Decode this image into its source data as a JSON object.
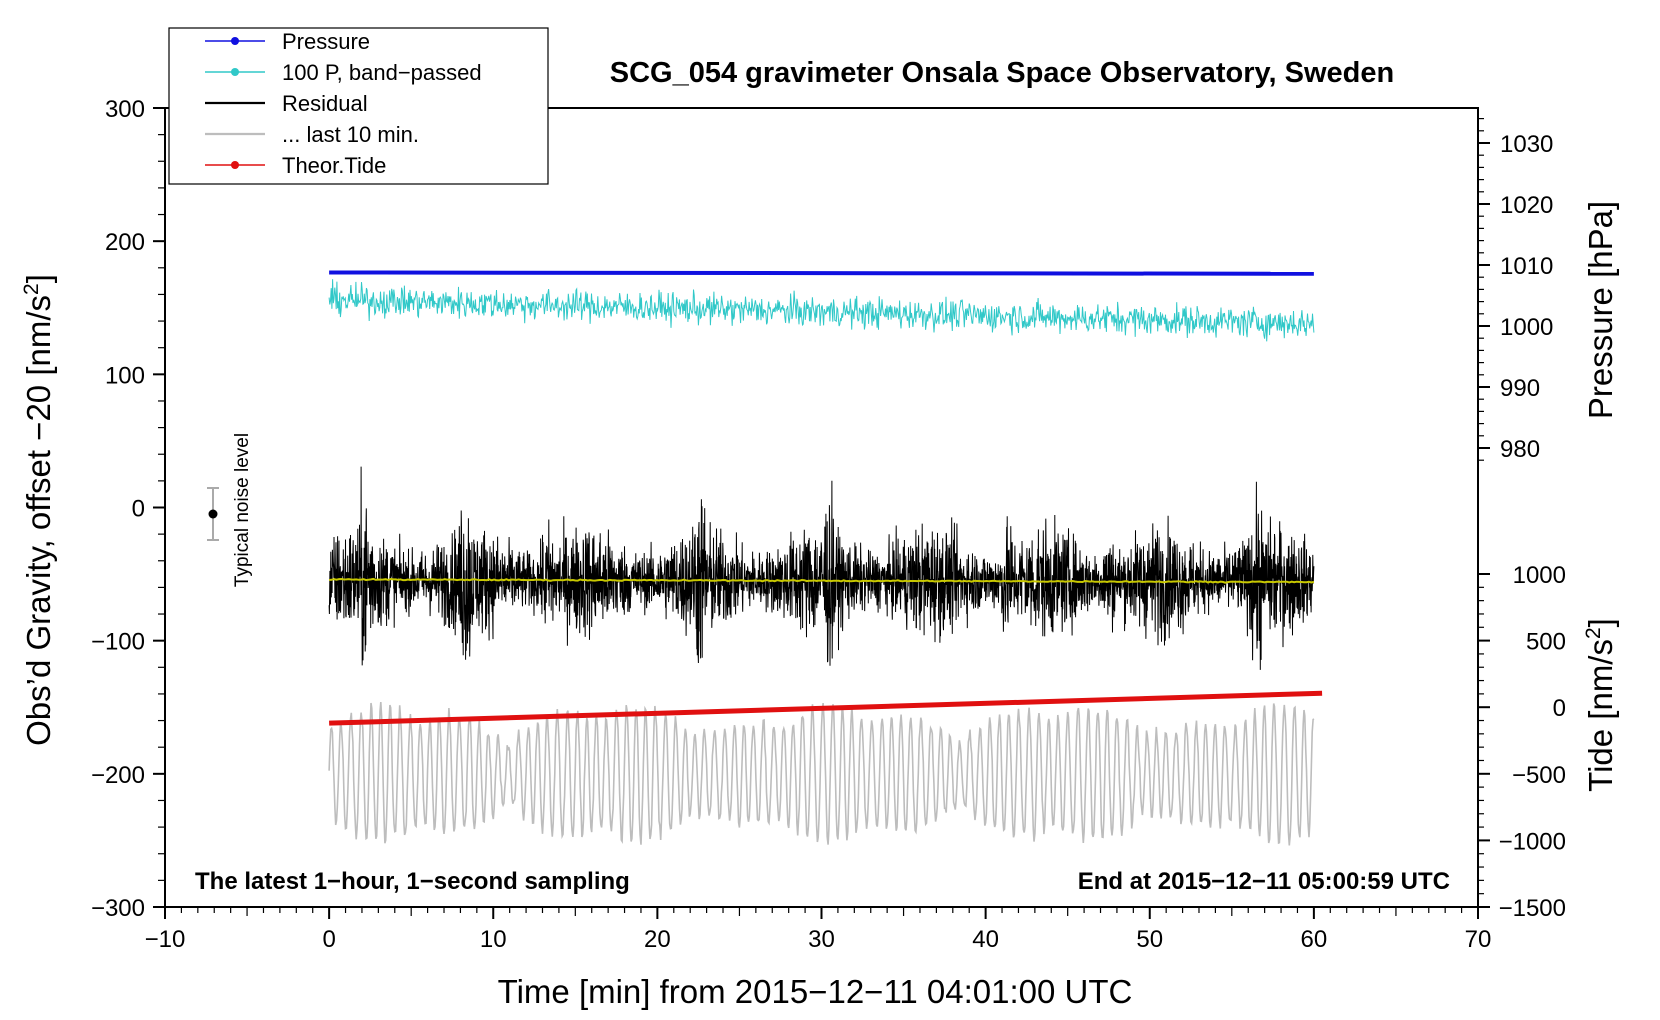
{
  "chart_data": {
    "type": "line",
    "title": "SCG_054 gravimeter Onsala Space Observatory, Sweden",
    "xlabel": "Time [min] from 2015−12−11 04:01:00 UTC",
    "ylabel_left": "Obs’d Gravity, offset −20 [nm/s",
    "ylabel_left_sup": "2",
    "ylabel_left_end": "]",
    "ylabel_right_pressure": "Pressure [hPa]",
    "ylabel_right_tide": "Tide [nm/s",
    "ylabel_right_tide_sup": "2",
    "ylabel_right_tide_end": "]",
    "xlim": [
      -10,
      70
    ],
    "ylim_left": [
      -300,
      300
    ],
    "pressure_axis": {
      "range_hPa": [
        980,
        1030
      ],
      "ticks": [
        980,
        990,
        1000,
        1010,
        1020,
        1030
      ]
    },
    "tide_axis": {
      "range": [
        -1500,
        1000
      ],
      "ticks": [
        1000,
        500,
        0,
        -500,
        -1000,
        -1500
      ]
    },
    "x_ticks": [
      -10,
      0,
      10,
      20,
      30,
      40,
      50,
      60,
      70
    ],
    "x_tick_labels": [
      "−10",
      "0",
      "10",
      "20",
      "30",
      "40",
      "50",
      "60",
      "70"
    ],
    "y_ticks_left": [
      300,
      200,
      100,
      0,
      -100,
      -200,
      -300
    ],
    "y_tick_labels_left": [
      "300",
      "200",
      "100",
      "0",
      "−100",
      "−200",
      "−300"
    ],
    "tide_tick_labels": [
      "1000",
      "500",
      "0",
      "−500",
      "−1000",
      "−1500"
    ],
    "legend": [
      {
        "label": "Pressure",
        "color": "#1010e0",
        "marker": true
      },
      {
        "label": "100 P, band−passed",
        "color": "#30c8c8",
        "marker": true
      },
      {
        "label": "Residual",
        "color": "#000000",
        "marker": false
      },
      {
        "label": "... last 10 min.",
        "color": "#bdbdbd",
        "marker": false
      },
      {
        "label": "Theor.Tide",
        "color": "#e01010",
        "marker": true
      }
    ],
    "series": [
      {
        "name": "Pressure",
        "color": "#1010e0",
        "axis": "left",
        "x_range": [
          0,
          60
        ],
        "y_start": 176.5,
        "y_end": 175.5
      },
      {
        "name": "100 P, band−passed",
        "color": "#30c8c8",
        "axis": "left",
        "x_range": [
          0,
          60
        ],
        "y_mean_start": 156,
        "y_mean_end": 138,
        "amplitude": 14
      },
      {
        "name": "Residual",
        "color": "#000000",
        "axis": "left",
        "x_range": [
          0,
          60
        ],
        "y_mean": -55,
        "amplitude": 55
      },
      {
        "name": "... last 10 min.",
        "color": "#bdbdbd",
        "axis": "left",
        "x_range": [
          0,
          60
        ],
        "y_mean": -200,
        "amplitude": 40
      },
      {
        "name": "Theor.Tide",
        "color": "#e01010",
        "axis": "tide",
        "x_range": [
          0,
          60.5
        ],
        "y_start": -120,
        "y_end": 105
      },
      {
        "name": "Residual mean",
        "color": "#c8c800",
        "axis": "left",
        "x_range": [
          0,
          60
        ],
        "y_start": -54,
        "y_end": -56
      }
    ],
    "noise_level": {
      "label": "Typical noise level",
      "x": -7,
      "y": 0,
      "error": 20
    },
    "annotation_left": "The latest 1−hour, 1−second sampling",
    "annotation_right": "End at 2015−12−11 05:00:59 UTC"
  }
}
